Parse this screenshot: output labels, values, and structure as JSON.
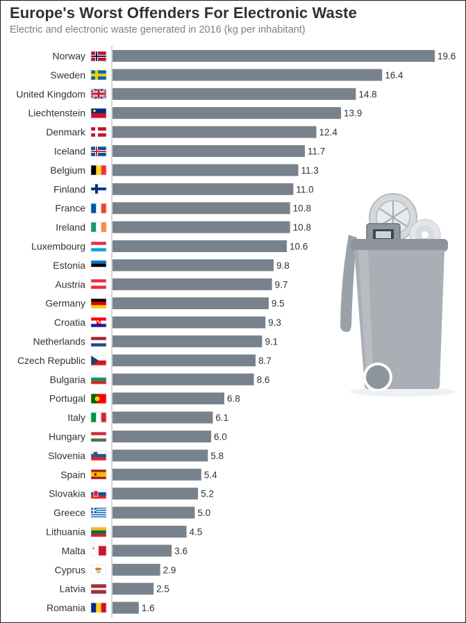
{
  "title": "Europe's Worst Offenders For Electronic Waste",
  "subtitle": "Electric and electronic waste generated in 2016 (kg per inhabitant)",
  "colors": {
    "bar": "#78828c",
    "axis": "#c6c9cc",
    "text": "#2f3236"
  },
  "chart_data": {
    "type": "bar",
    "orientation": "horizontal",
    "title": "Europe's Worst Offenders For Electronic Waste",
    "subtitle": "Electric and electronic waste generated in 2016 (kg per inhabitant)",
    "categories": [
      "Norway",
      "Sweden",
      "United Kingdom",
      "Liechtenstein",
      "Denmark",
      "Iceland",
      "Belgium",
      "Finland",
      "France",
      "Ireland",
      "Luxembourg",
      "Estonia",
      "Austria",
      "Germany",
      "Croatia",
      "Netherlands",
      "Czech Republic",
      "Bulgaria",
      "Portugal",
      "Italy",
      "Hungary",
      "Slovenia",
      "Spain",
      "Slovakia",
      "Greece",
      "Lithuania",
      "Malta",
      "Cyprus",
      "Latvia",
      "Romania"
    ],
    "values": [
      19.6,
      16.4,
      14.8,
      13.9,
      12.4,
      11.7,
      11.3,
      11.0,
      10.8,
      10.8,
      10.6,
      9.8,
      9.7,
      9.5,
      9.3,
      9.1,
      8.7,
      8.6,
      6.8,
      6.1,
      6.0,
      5.8,
      5.4,
      5.2,
      5.0,
      4.5,
      3.6,
      2.9,
      2.5,
      1.6
    ],
    "value_labels": [
      "19.6",
      "16.4",
      "14.8",
      "13.9",
      "12.4",
      "11.7",
      "11.3",
      "11.0",
      "10.8",
      "10.8",
      "10.6",
      "9.8",
      "9.7",
      "9.5",
      "9.3",
      "9.1",
      "8.7",
      "8.6",
      "6.8",
      "6.1",
      "6.0",
      "5.8",
      "5.4",
      "5.2",
      "5.0",
      "4.5",
      "3.6",
      "2.9",
      "2.5",
      "1.6"
    ],
    "flags": [
      "flag-norway",
      "flag-sweden",
      "flag-united-kingdom",
      "flag-liechtenstein",
      "flag-denmark",
      "flag-iceland",
      "flag-belgium",
      "flag-finland",
      "flag-france",
      "flag-ireland",
      "flag-luxembourg",
      "flag-estonia",
      "flag-austria",
      "flag-germany",
      "flag-croatia",
      "flag-netherlands",
      "flag-czech-republic",
      "flag-bulgaria",
      "flag-portugal",
      "flag-italy",
      "flag-hungary",
      "flag-slovenia",
      "flag-spain",
      "flag-slovakia",
      "flag-greece",
      "flag-lithuania",
      "flag-malta",
      "flag-cyprus",
      "flag-latvia",
      "flag-romania"
    ],
    "xlim": [
      0,
      19.6
    ],
    "grid": false,
    "decoration": "trash-bin-with-electronics-icon"
  }
}
